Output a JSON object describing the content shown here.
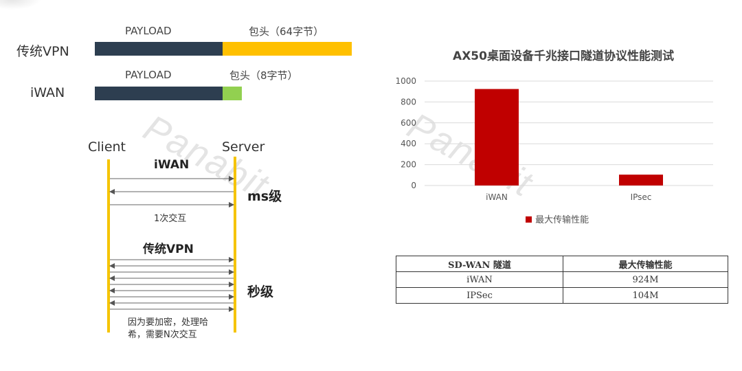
{
  "packet_compare": {
    "vpn": {
      "label": "传统VPN",
      "payload_label": "PAYLOAD",
      "header_label": "包头（64字节）",
      "header_color": "#ffc000"
    },
    "iwan": {
      "label": "iWAN",
      "payload_label": "PAYLOAD",
      "header_label": "包头（8字节）",
      "header_color": "#92d050"
    },
    "payload_color": "#2d3e50"
  },
  "watermark": "Panabit",
  "sequence": {
    "client_label": "Client",
    "server_label": "Server",
    "iwan_title": "iWAN",
    "iwan_level": "ms级",
    "iwan_note": "1次交互",
    "vpn_title": "传统VPN",
    "vpn_level": "秒级",
    "vpn_note_line1": "因为要加密，处理哈",
    "vpn_note_line2": "希，需要N次交互",
    "lifeline_color": "#f5c400"
  },
  "chart_data": {
    "type": "bar",
    "title": "AX50桌面设备千兆接口隧道协议性能测试",
    "categories": [
      "iWAN",
      "IPsec"
    ],
    "series": [
      {
        "name": "最大传输性能",
        "values": [
          924,
          104
        ],
        "color": "#c00000"
      }
    ],
    "ylim": [
      0,
      1000
    ],
    "yticks": [
      0,
      200,
      400,
      600,
      800,
      1000
    ],
    "grid": true,
    "legend_position": "bottom"
  },
  "table": {
    "headers": [
      "SD-WAN 隧道",
      "最大传输性能"
    ],
    "rows": [
      [
        "iWAN",
        "924M"
      ],
      [
        "IPSec",
        "104M"
      ]
    ]
  }
}
